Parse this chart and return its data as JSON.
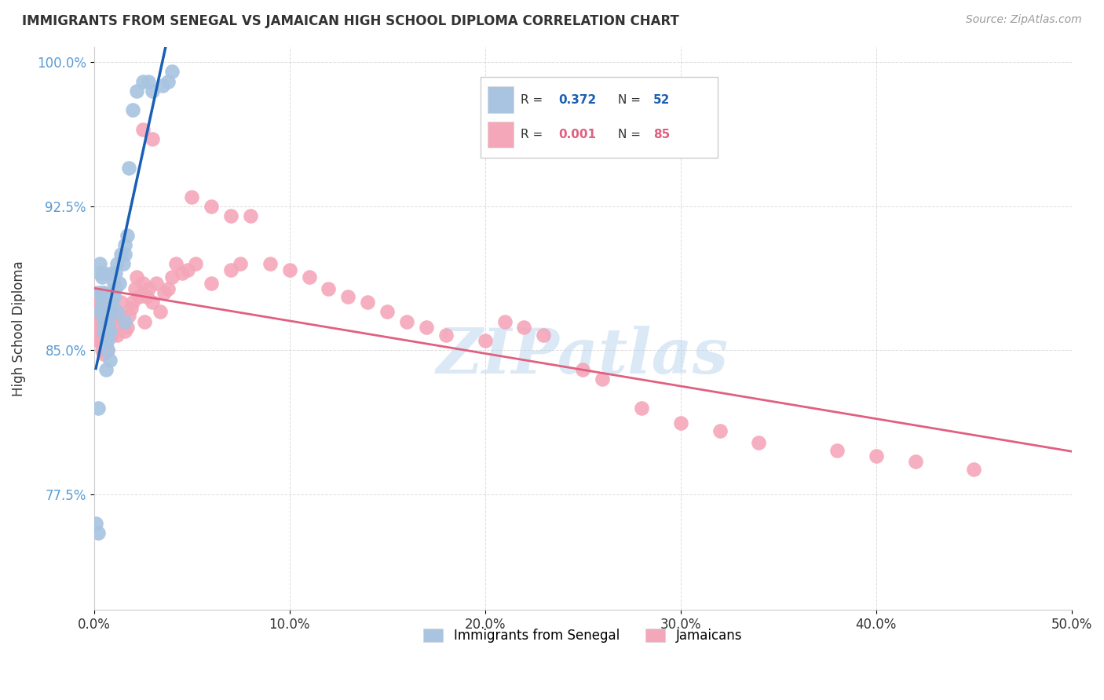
{
  "title": "IMMIGRANTS FROM SENEGAL VS JAMAICAN HIGH SCHOOL DIPLOMA CORRELATION CHART",
  "source": "Source: ZipAtlas.com",
  "xlabel": "",
  "ylabel": "High School Diploma",
  "xlim": [
    0.0,
    0.5
  ],
  "ylim": [
    0.715,
    1.008
  ],
  "xtick_labels": [
    "0.0%",
    "10.0%",
    "20.0%",
    "30.0%",
    "40.0%",
    "50.0%"
  ],
  "xtick_vals": [
    0.0,
    0.1,
    0.2,
    0.3,
    0.4,
    0.5
  ],
  "ytick_labels": [
    "77.5%",
    "85.0%",
    "92.5%",
    "100.0%"
  ],
  "ytick_vals": [
    0.775,
    0.85,
    0.925,
    1.0
  ],
  "legend_blue_label": "Immigrants from Senegal",
  "legend_pink_label": "Jamaicans",
  "R_blue": "0.372",
  "N_blue": "52",
  "R_pink": "0.001",
  "N_pink": "85",
  "blue_color": "#a8c4e0",
  "pink_color": "#f4a7b9",
  "trend_blue_color": "#1a5fb4",
  "trend_pink_color": "#e06080",
  "watermark": "ZIPatlas",
  "watermark_color": "#b8d4ee",
  "blue_points_x": [
    0.001,
    0.002,
    0.002,
    0.003,
    0.003,
    0.003,
    0.003,
    0.004,
    0.004,
    0.004,
    0.004,
    0.005,
    0.005,
    0.005,
    0.005,
    0.005,
    0.005,
    0.006,
    0.006,
    0.006,
    0.006,
    0.007,
    0.007,
    0.007,
    0.007,
    0.008,
    0.008,
    0.008,
    0.009,
    0.009,
    0.01,
    0.01,
    0.011,
    0.011,
    0.012,
    0.013,
    0.014,
    0.015,
    0.016,
    0.016,
    0.017,
    0.018,
    0.02,
    0.022,
    0.025,
    0.028,
    0.03,
    0.035,
    0.038,
    0.04,
    0.012,
    0.016
  ],
  "blue_points_y": [
    0.76,
    0.755,
    0.82,
    0.87,
    0.88,
    0.89,
    0.895,
    0.87,
    0.875,
    0.88,
    0.888,
    0.86,
    0.865,
    0.87,
    0.875,
    0.88,
    0.89,
    0.84,
    0.855,
    0.86,
    0.865,
    0.85,
    0.855,
    0.86,
    0.865,
    0.845,
    0.86,
    0.87,
    0.875,
    0.89,
    0.878,
    0.885,
    0.882,
    0.89,
    0.895,
    0.885,
    0.9,
    0.895,
    0.9,
    0.905,
    0.91,
    0.945,
    0.975,
    0.985,
    0.99,
    0.99,
    0.985,
    0.988,
    0.99,
    0.995,
    0.87,
    0.865
  ],
  "pink_points_x": [
    0.001,
    0.001,
    0.001,
    0.002,
    0.002,
    0.002,
    0.002,
    0.003,
    0.003,
    0.003,
    0.003,
    0.004,
    0.004,
    0.004,
    0.005,
    0.005,
    0.005,
    0.006,
    0.006,
    0.007,
    0.007,
    0.008,
    0.008,
    0.009,
    0.01,
    0.011,
    0.012,
    0.013,
    0.014,
    0.015,
    0.016,
    0.017,
    0.018,
    0.019,
    0.02,
    0.021,
    0.022,
    0.023,
    0.025,
    0.026,
    0.027,
    0.028,
    0.03,
    0.032,
    0.034,
    0.036,
    0.038,
    0.04,
    0.042,
    0.045,
    0.048,
    0.052,
    0.06,
    0.07,
    0.075,
    0.08,
    0.09,
    0.1,
    0.11,
    0.12,
    0.13,
    0.14,
    0.15,
    0.16,
    0.17,
    0.18,
    0.2,
    0.21,
    0.22,
    0.23,
    0.25,
    0.26,
    0.28,
    0.3,
    0.32,
    0.34,
    0.38,
    0.4,
    0.42,
    0.45,
    0.025,
    0.03,
    0.05,
    0.06,
    0.07
  ],
  "pink_points_y": [
    0.87,
    0.875,
    0.88,
    0.855,
    0.86,
    0.865,
    0.87,
    0.855,
    0.86,
    0.865,
    0.87,
    0.85,
    0.86,
    0.865,
    0.848,
    0.858,
    0.862,
    0.858,
    0.862,
    0.85,
    0.862,
    0.86,
    0.865,
    0.858,
    0.87,
    0.862,
    0.858,
    0.868,
    0.875,
    0.865,
    0.86,
    0.862,
    0.868,
    0.872,
    0.875,
    0.882,
    0.888,
    0.878,
    0.885,
    0.865,
    0.878,
    0.882,
    0.875,
    0.885,
    0.87,
    0.88,
    0.882,
    0.888,
    0.895,
    0.89,
    0.892,
    0.895,
    0.885,
    0.892,
    0.895,
    0.92,
    0.895,
    0.892,
    0.888,
    0.882,
    0.878,
    0.875,
    0.87,
    0.865,
    0.862,
    0.858,
    0.855,
    0.865,
    0.862,
    0.858,
    0.84,
    0.835,
    0.82,
    0.812,
    0.808,
    0.802,
    0.798,
    0.795,
    0.792,
    0.788,
    0.965,
    0.96,
    0.93,
    0.925,
    0.92
  ]
}
